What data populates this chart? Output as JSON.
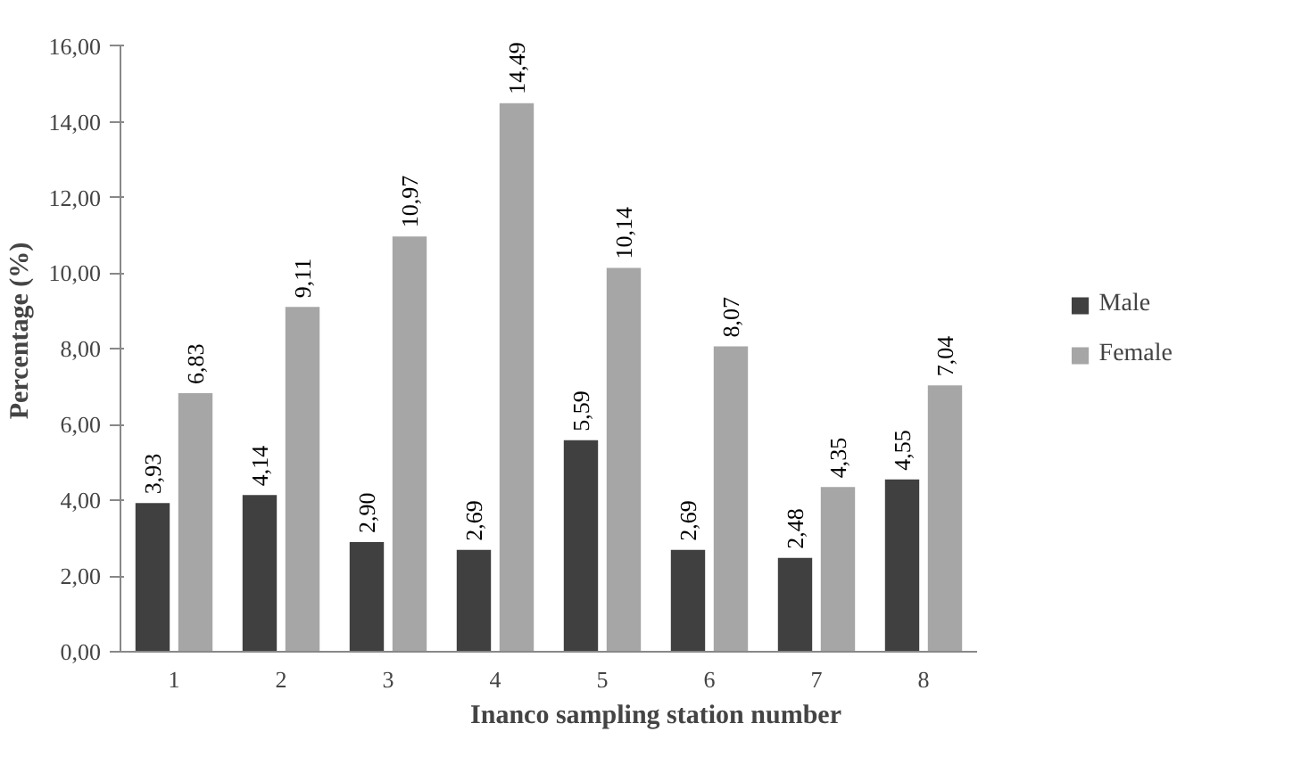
{
  "chart_data": {
    "type": "bar",
    "xlabel": "Inanco sampling station number",
    "ylabel": "Percentage (%)",
    "categories": [
      "1",
      "2",
      "3",
      "4",
      "5",
      "6",
      "7",
      "8"
    ],
    "series": [
      {
        "name": "Male",
        "color": "#404040",
        "values": [
          3.93,
          4.14,
          2.9,
          2.69,
          5.59,
          2.69,
          2.48,
          4.55
        ],
        "value_labels": [
          "3,93",
          "4,14",
          "2,90",
          "2,69",
          "5,59",
          "2,69",
          "2,48",
          "4,55"
        ]
      },
      {
        "name": "Female",
        "color": "#a6a6a6",
        "values": [
          6.83,
          9.11,
          10.97,
          14.49,
          10.14,
          8.07,
          4.35,
          7.04
        ],
        "value_labels": [
          "6,83",
          "9,11",
          "10,97",
          "14,49",
          "10,14",
          "8,07",
          "4,35",
          "7,04"
        ]
      }
    ],
    "ylim": [
      0,
      16
    ],
    "yticks": [
      {
        "value": 0,
        "label": "0,00"
      },
      {
        "value": 2,
        "label": "2,00"
      },
      {
        "value": 4,
        "label": "4,00"
      },
      {
        "value": 6,
        "label": "6,00"
      },
      {
        "value": 8,
        "label": "8,00"
      },
      {
        "value": 10,
        "label": "10,00"
      },
      {
        "value": 12,
        "label": "12,00"
      },
      {
        "value": 14,
        "label": "14,00"
      },
      {
        "value": 16,
        "label": "16,00"
      }
    ],
    "legend": "right"
  }
}
